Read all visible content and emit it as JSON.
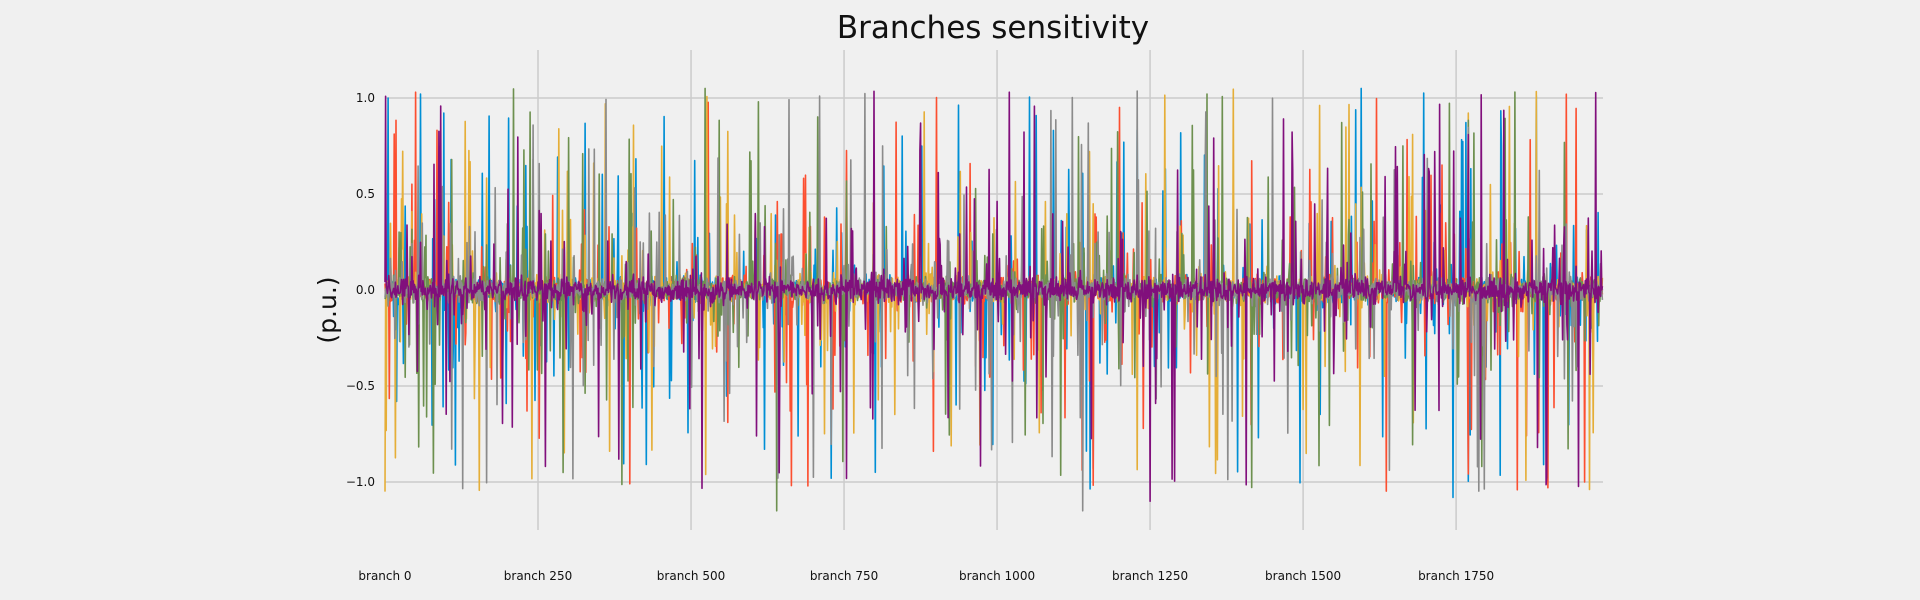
{
  "chart_data": {
    "type": "line",
    "title": "Branches sensitivity",
    "xlabel": "",
    "ylabel": "(p.u.)",
    "x_range": [
      0,
      1990
    ],
    "ylim": [
      -1.25,
      1.25
    ],
    "x_ticks": [
      0,
      250,
      500,
      750,
      1000,
      1250,
      1500,
      1750
    ],
    "x_tick_labels": [
      "branch 0",
      "branch 250",
      "branch 500",
      "branch 750",
      "branch 1000",
      "branch 1250",
      "branch 1500",
      "branch 1750"
    ],
    "y_ticks": [
      -1.0,
      -0.5,
      0.0,
      0.5,
      1.0
    ],
    "y_tick_labels": [
      "−1.0",
      "−0.5",
      "0.0",
      "0.5",
      "1.0"
    ],
    "grid": true,
    "legend": "none",
    "series_colors": [
      "#008fd5",
      "#fc4f30",
      "#e5ae38",
      "#6d904f",
      "#8b8b8b",
      "#810f7c"
    ],
    "series_count": 6,
    "points_per_series": 1990,
    "notes_visible_peaks": [
      {
        "x": 5,
        "y": 1.0
      },
      {
        "x": 50,
        "y": 1.03
      },
      {
        "x": 360,
        "y": 0.97
      },
      {
        "x": 610,
        "y": 0.98
      },
      {
        "x": 710,
        "y": 1.01
      },
      {
        "x": 1020,
        "y": 1.03
      },
      {
        "x": 1595,
        "y": 1.05
      },
      {
        "x": 1930,
        "y": 1.02
      },
      {
        "x": 0,
        "y": -1.05
      },
      {
        "x": 640,
        "y": -1.15
      },
      {
        "x": 1140,
        "y": -1.15
      },
      {
        "x": 1250,
        "y": -1.1
      },
      {
        "x": 1745,
        "y": -1.08
      },
      {
        "x": 1960,
        "y": -1.0
      }
    ]
  }
}
